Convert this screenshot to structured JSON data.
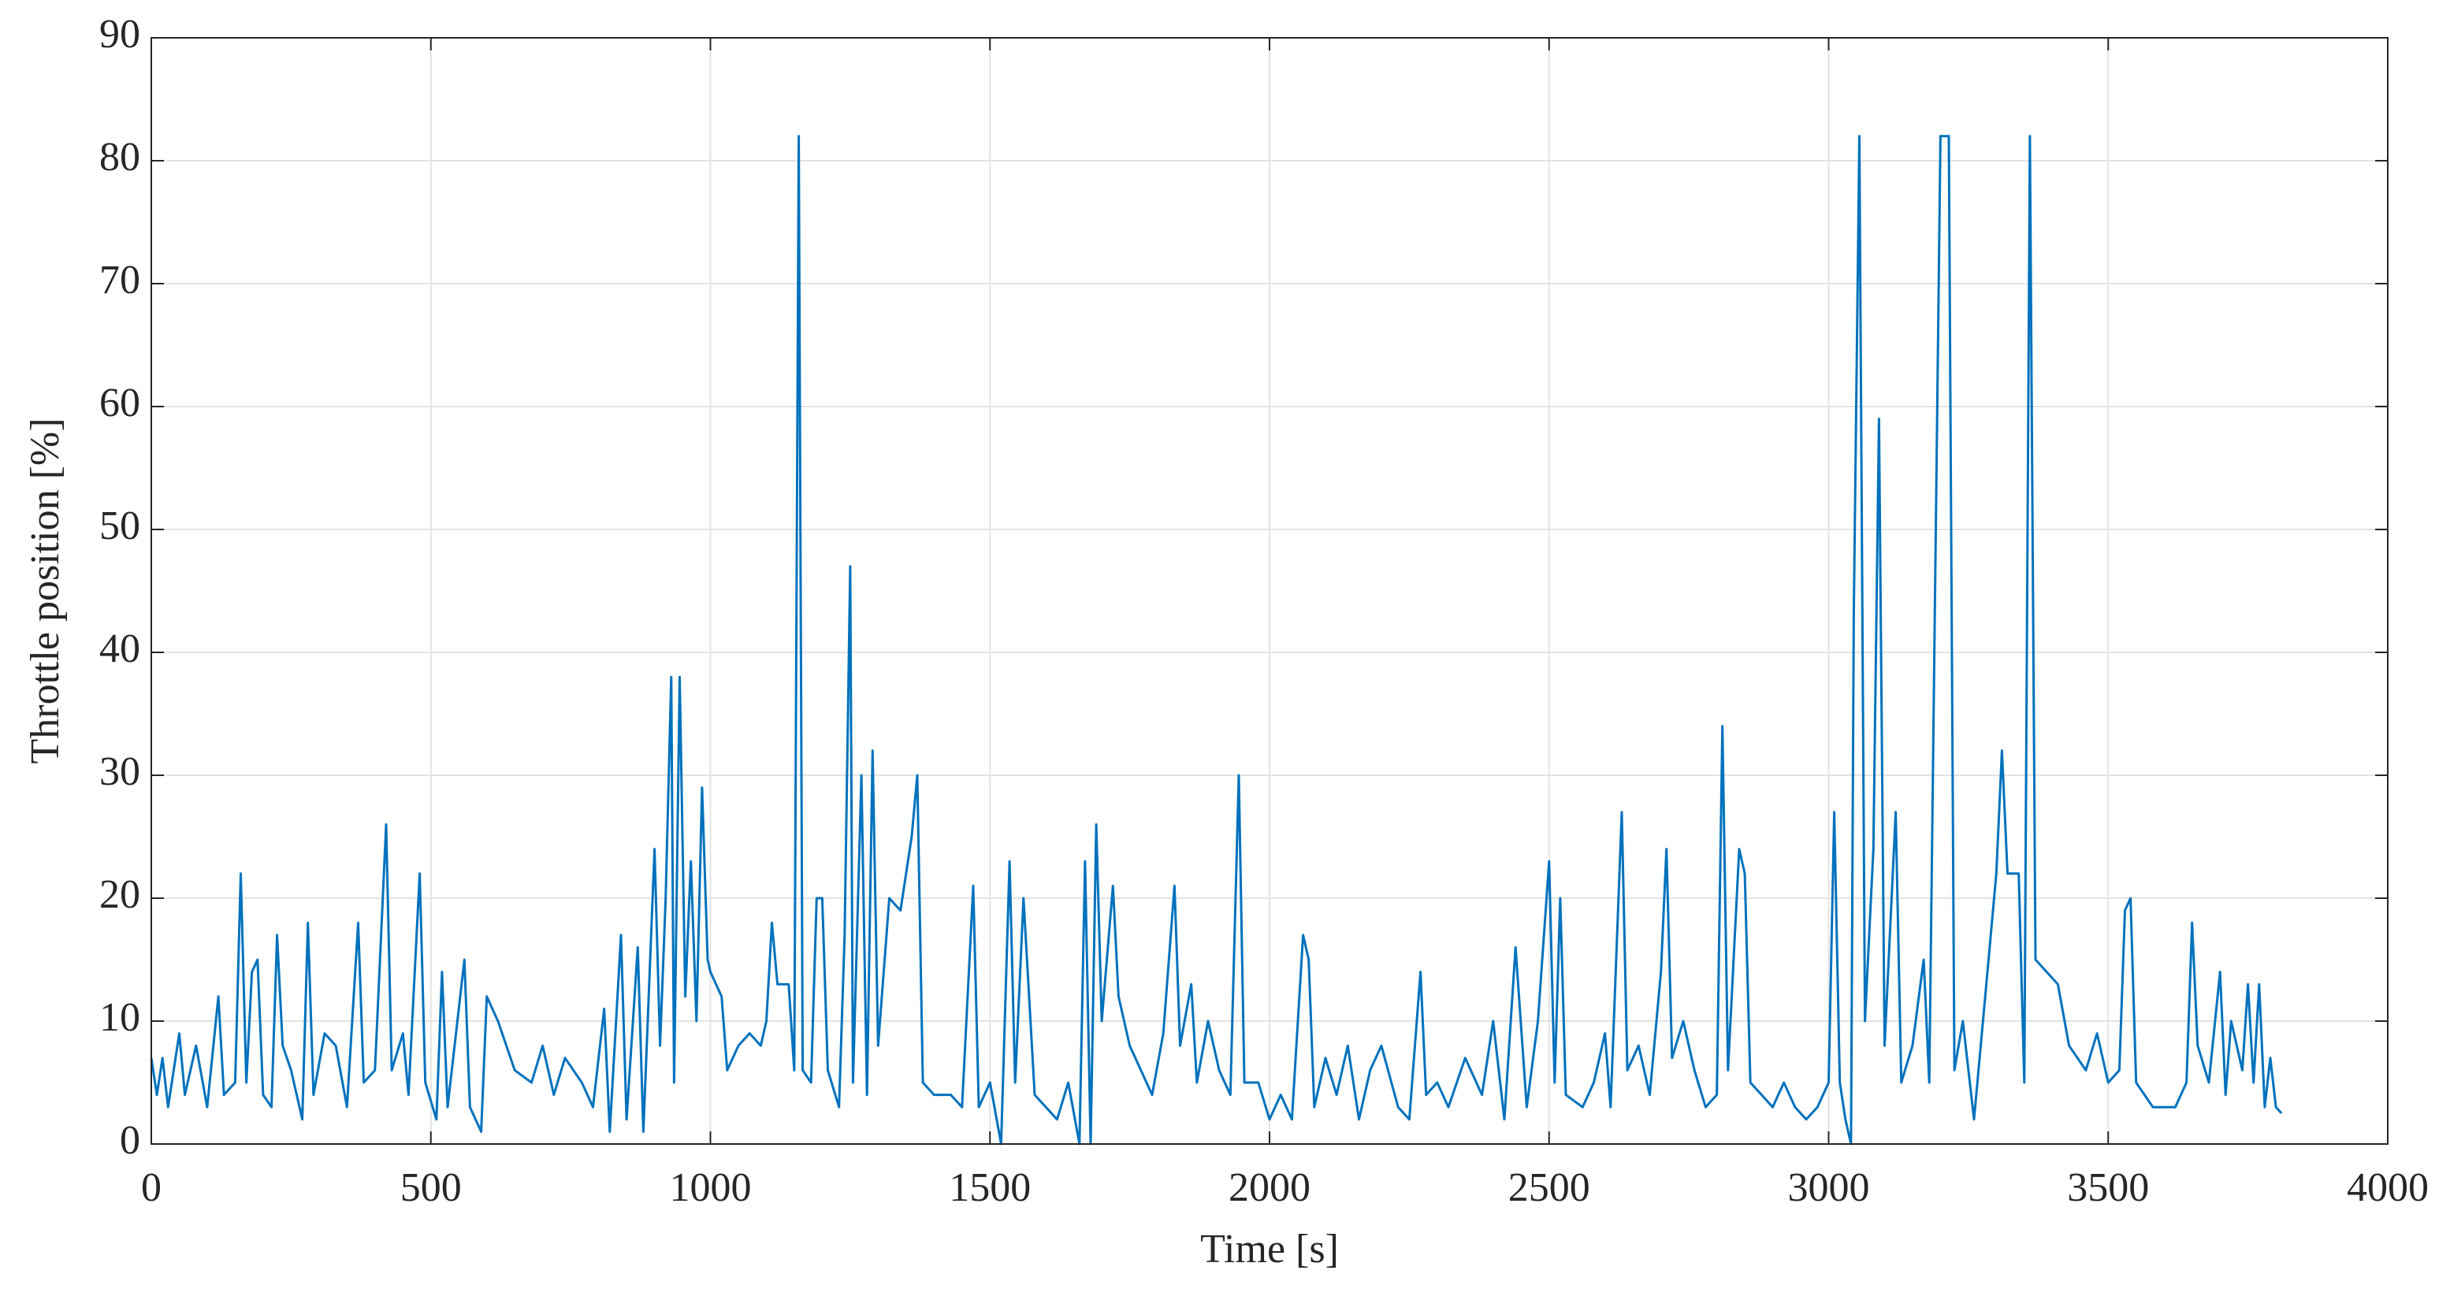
{
  "chart_data": {
    "type": "line",
    "xlabel": "Time [s]",
    "ylabel": "Throttle position [%]",
    "xlim": [
      0,
      4000
    ],
    "xticks": [
      0,
      500,
      1000,
      1500,
      2000,
      2500,
      3000,
      3500,
      4000
    ],
    "ylim": [
      0,
      90
    ],
    "yticks": [
      0,
      10,
      20,
      30,
      40,
      50,
      60,
      70,
      80,
      90
    ],
    "grid": true,
    "color": "#0072bd",
    "x": [
      0,
      10,
      20,
      30,
      50,
      60,
      80,
      100,
      120,
      130,
      150,
      160,
      170,
      180,
      190,
      200,
      215,
      225,
      235,
      250,
      270,
      280,
      290,
      310,
      330,
      350,
      370,
      380,
      400,
      420,
      430,
      450,
      460,
      480,
      490,
      510,
      520,
      530,
      560,
      570,
      590,
      600,
      620,
      650,
      680,
      700,
      720,
      740,
      770,
      790,
      810,
      820,
      840,
      850,
      870,
      880,
      900,
      910,
      920,
      930,
      935,
      945,
      955,
      965,
      975,
      985,
      995,
      1000,
      1020,
      1030,
      1050,
      1070,
      1090,
      1100,
      1110,
      1120,
      1140,
      1150,
      1158,
      1165,
      1180,
      1190,
      1200,
      1210,
      1230,
      1240,
      1250,
      1255,
      1270,
      1280,
      1290,
      1300,
      1320,
      1340,
      1360,
      1370,
      1380,
      1400,
      1430,
      1450,
      1470,
      1480,
      1500,
      1520,
      1535,
      1545,
      1560,
      1570,
      1580,
      1600,
      1620,
      1640,
      1660,
      1670,
      1680,
      1690,
      1700,
      1720,
      1730,
      1750,
      1770,
      1790,
      1810,
      1830,
      1840,
      1860,
      1870,
      1890,
      1910,
      1930,
      1945,
      1955,
      1980,
      2000,
      2020,
      2040,
      2060,
      2070,
      2080,
      2100,
      2120,
      2140,
      2160,
      2180,
      2200,
      2230,
      2250,
      2270,
      2280,
      2300,
      2320,
      2350,
      2380,
      2400,
      2420,
      2440,
      2460,
      2480,
      2500,
      2510,
      2520,
      2530,
      2560,
      2580,
      2600,
      2610,
      2630,
      2640,
      2660,
      2680,
      2700,
      2710,
      2720,
      2740,
      2760,
      2780,
      2800,
      2810,
      2820,
      2840,
      2850,
      2860,
      2880,
      2900,
      2920,
      2940,
      2960,
      2980,
      3000,
      3010,
      3020,
      3030,
      3040,
      3045,
      3055,
      3065,
      3080,
      3090,
      3100,
      3120,
      3130,
      3150,
      3170,
      3180,
      3200,
      3215,
      3225,
      3240,
      3260,
      3280,
      3300,
      3310,
      3320,
      3340,
      3350,
      3360,
      3370,
      3390,
      3410,
      3430,
      3460,
      3480,
      3500,
      3520,
      3530,
      3540,
      3550,
      3580,
      3620,
      3640,
      3650,
      3660,
      3680,
      3700,
      3710,
      3720,
      3740,
      3750,
      3760,
      3770,
      3780,
      3790,
      3800,
      3810
    ],
    "values": [
      7,
      4,
      7,
      3,
      9,
      4,
      8,
      3,
      12,
      4,
      5,
      22,
      5,
      14,
      15,
      4,
      3,
      17,
      8,
      6,
      2,
      18,
      4,
      9,
      8,
      3,
      18,
      5,
      6,
      26,
      6,
      9,
      4,
      22,
      5,
      2,
      14,
      3,
      15,
      3,
      1,
      12,
      10,
      6,
      5,
      8,
      4,
      7,
      5,
      3,
      11,
      1,
      17,
      2,
      16,
      1,
      24,
      8,
      20,
      38,
      5,
      38,
      12,
      23,
      10,
      29,
      15,
      14,
      12,
      6,
      8,
      9,
      8,
      10,
      18,
      13,
      13,
      6,
      82,
      6,
      5,
      20,
      20,
      6,
      3,
      17,
      47,
      5,
      30,
      4,
      32,
      8,
      20,
      19,
      25,
      30,
      5,
      4,
      4,
      3,
      21,
      3,
      5,
      0,
      23,
      5,
      20,
      12,
      4,
      3,
      2,
      5,
      0,
      23,
      0,
      26,
      10,
      21,
      12,
      8,
      6,
      4,
      9,
      21,
      8,
      13,
      5,
      10,
      6,
      4,
      30,
      5,
      5,
      2,
      4,
      2,
      17,
      15,
      3,
      7,
      4,
      8,
      2,
      6,
      8,
      3,
      2,
      14,
      4,
      5,
      3,
      7,
      4,
      10,
      2,
      16,
      3,
      10,
      23,
      5,
      20,
      4,
      3,
      5,
      9,
      3,
      27,
      6,
      8,
      4,
      14,
      24,
      7,
      10,
      6,
      3,
      4,
      34,
      6,
      24,
      22,
      5,
      4,
      3,
      5,
      3,
      2,
      3,
      5,
      27,
      5,
      2,
      0,
      43,
      82,
      10,
      24,
      59,
      8,
      27,
      5,
      8,
      15,
      5,
      82,
      82,
      6,
      10,
      2,
      12,
      22,
      32,
      22,
      22,
      5,
      82,
      15,
      14,
      13,
      8,
      6,
      9,
      5,
      6,
      19,
      20,
      5,
      3,
      3,
      5,
      18,
      8,
      5,
      14,
      4,
      10,
      6,
      13,
      5,
      13,
      3,
      7,
      3,
      2.5
    ]
  }
}
